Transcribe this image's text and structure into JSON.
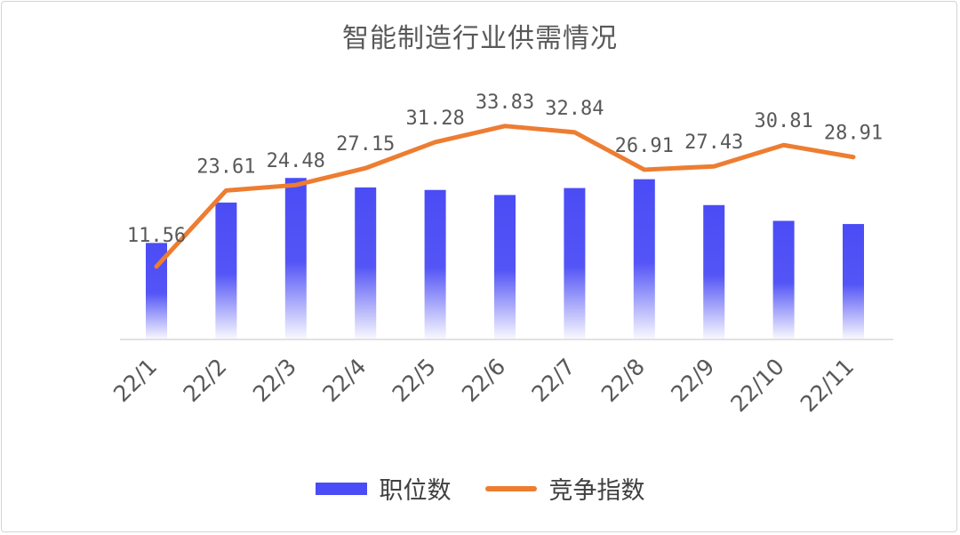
{
  "chart_data": {
    "type": "bar",
    "title": "智能制造行业供需情况",
    "categories": [
      "22/1",
      "22/2",
      "22/3",
      "22/4",
      "22/5",
      "22/6",
      "22/7",
      "22/8",
      "22/9",
      "22/10",
      "22/11"
    ],
    "series": [
      {
        "name": "职位数",
        "type": "bar",
        "values": [
          15.3,
          21.7,
          25.6,
          24.1,
          23.7,
          22.9,
          24.0,
          25.4,
          21.3,
          18.8,
          18.3
        ],
        "color": "#4b4cf5",
        "gradient_fade": true
      },
      {
        "name": "竞争指数",
        "type": "line",
        "values": [
          11.56,
          23.61,
          24.48,
          27.15,
          31.28,
          33.83,
          32.84,
          26.91,
          27.43,
          30.81,
          28.91
        ],
        "data_labels": [
          "11.56",
          "23.61",
          "24.48",
          "27.15",
          "31.28",
          "33.83",
          "32.84",
          "26.91",
          "27.43",
          "30.81",
          "28.91"
        ],
        "color": "#ed7d31"
      }
    ],
    "ylim": [
      0,
      40
    ],
    "grid": false,
    "legend_position": "bottom"
  }
}
